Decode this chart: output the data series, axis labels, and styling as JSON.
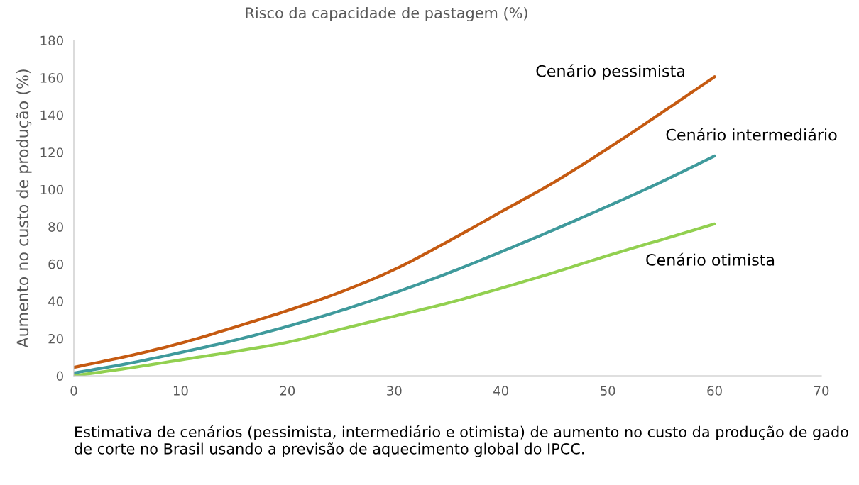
{
  "chart_data": {
    "type": "line",
    "title": "Risco da capacidade de pastagem (%)",
    "ylabel": "Aumento no custo de produção (%)",
    "x": [
      0,
      5,
      10,
      15,
      20,
      25,
      30,
      35,
      40,
      45,
      50,
      55,
      60
    ],
    "series": [
      {
        "name": "Cenário pessimista",
        "color": "#c55a11",
        "values": [
          4.5,
          10.5,
          17.5,
          26,
          35,
          45,
          57,
          72,
          88,
          104,
          122,
          141,
          160.5
        ]
      },
      {
        "name": "Cenário intermediário",
        "color": "#3f9a9c",
        "values": [
          1.5,
          6.5,
          12.5,
          19,
          26.5,
          35,
          44.5,
          55,
          66.5,
          78.5,
          91,
          104,
          118
        ]
      },
      {
        "name": "Cenário otimista",
        "color": "#92d050",
        "values": [
          0,
          4,
          8.5,
          13,
          18,
          25,
          32,
          39,
          47,
          55.5,
          64.5,
          73,
          81.5
        ]
      }
    ],
    "xlim": [
      0,
      70
    ],
    "xticks": [
      0,
      10,
      20,
      30,
      40,
      50,
      60,
      70
    ],
    "ylim": [
      0,
      180
    ],
    "yticks": [
      0,
      20,
      40,
      60,
      80,
      100,
      120,
      140,
      160,
      180
    ],
    "grid": false,
    "legend": false,
    "marker": "none",
    "line_style": "solid",
    "annotations": [
      "Estimativa de cenários (pessimista, intermediário e otimista) de aumento no custo da produção de gado de corte no Brasil usando a previsão de aquecimento global do IPCC."
    ]
  }
}
